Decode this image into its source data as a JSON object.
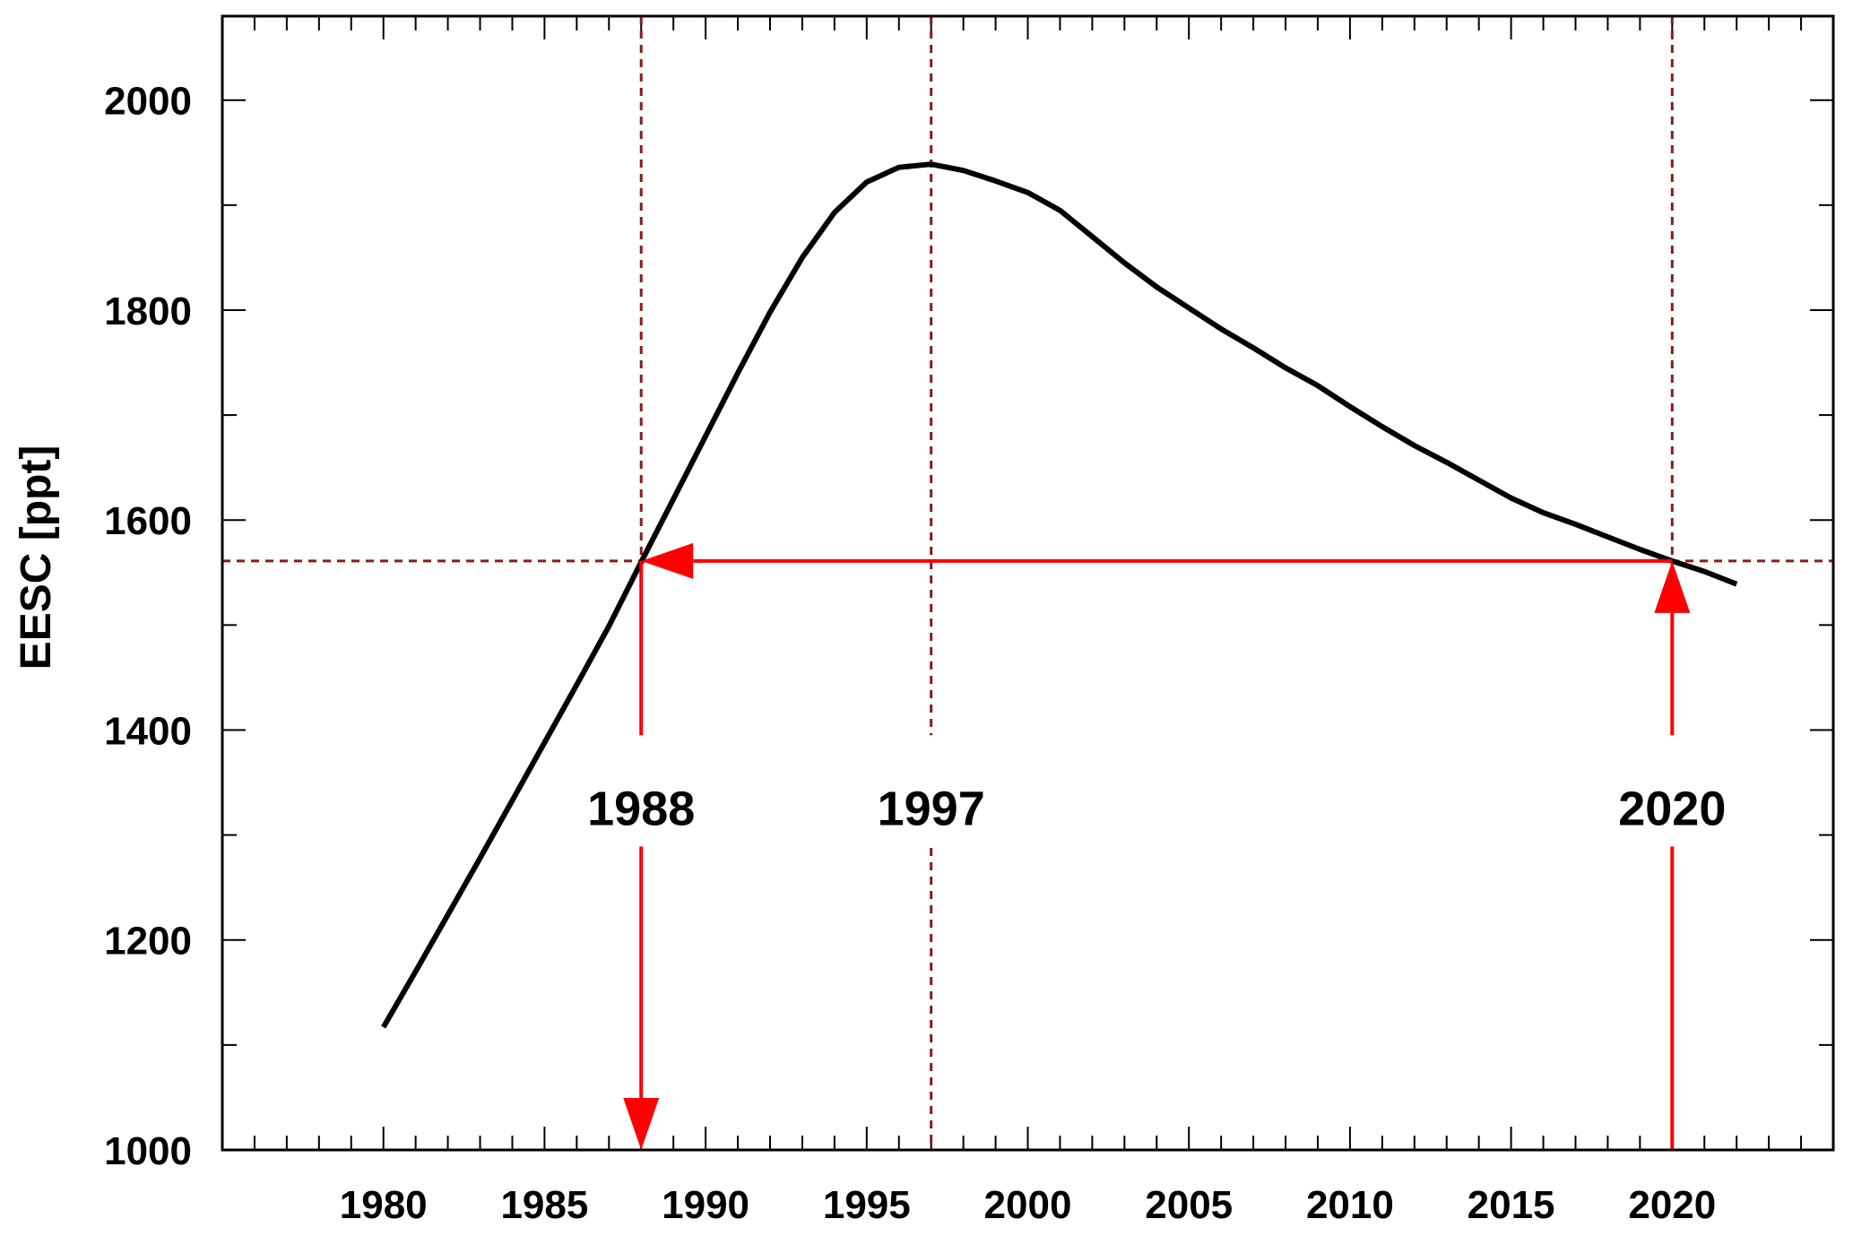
{
  "chart_data": {
    "type": "line",
    "title": "",
    "xlabel": "",
    "ylabel": "EESC [ppt]",
    "xlim": [
      1975,
      2025
    ],
    "ylim": [
      1000,
      2080
    ],
    "x_ticks": [
      1980,
      1985,
      1990,
      1995,
      2000,
      2005,
      2010,
      2015,
      2020
    ],
    "x_tick_labels": [
      "1980",
      "1985",
      "1990",
      "1995",
      "2000",
      "2005",
      "2010",
      "2015",
      "2020"
    ],
    "y_ticks": [
      1000,
      1200,
      1400,
      1600,
      1800,
      2000
    ],
    "y_tick_labels": [
      "1000",
      "1200",
      "1400",
      "1600",
      "1800",
      "2000"
    ],
    "grid": false,
    "series": [
      {
        "x": [
          1980,
          1981,
          1982,
          1983,
          1984,
          1985,
          1986,
          1987,
          1988,
          1989,
          1990,
          1991,
          1992,
          1993,
          1994,
          1995,
          1996,
          1997,
          1998,
          1999,
          2000,
          2001,
          2002,
          2003,
          2004,
          2005,
          2006,
          2007,
          2008,
          2009,
          2010,
          2011,
          2012,
          2013,
          2014,
          2015,
          2016,
          2017,
          2018,
          2019,
          2020,
          2021,
          2022
        ],
        "y": [
          1117,
          1170,
          1224,
          1278,
          1333,
          1388,
          1443,
          1499,
          1560,
          1620,
          1680,
          1740,
          1798,
          1850,
          1893,
          1922,
          1936,
          1939,
          1933,
          1923,
          1912,
          1895,
          1870,
          1845,
          1822,
          1802,
          1782,
          1764,
          1745,
          1728,
          1708,
          1689,
          1671,
          1655,
          1638,
          1621,
          1607,
          1596,
          1584,
          1572,
          1561,
          1551,
          1539
        ]
      }
    ],
    "reference_lines": {
      "vertical": [
        1988,
        1997,
        2020
      ],
      "horizontal": [
        1561
      ]
    },
    "annotations": [
      {
        "text": "1988",
        "x": 1988,
        "y": 1325
      },
      {
        "text": "1997",
        "x": 1997,
        "y": 1325
      },
      {
        "text": "2020",
        "x": 2020,
        "y": 1325
      }
    ],
    "arrows": [
      {
        "from": [
          2020,
          1000
        ],
        "to": [
          2020,
          1561
        ]
      },
      {
        "from": [
          2020,
          1561
        ],
        "to": [
          1988,
          1561
        ]
      },
      {
        "from": [
          1988,
          1561
        ],
        "to": [
          1988,
          1000
        ]
      }
    ],
    "colors": {
      "curve": "#000000",
      "reference": "#8b1a1a",
      "arrow": "#ff0000",
      "frame": "#000000"
    }
  }
}
